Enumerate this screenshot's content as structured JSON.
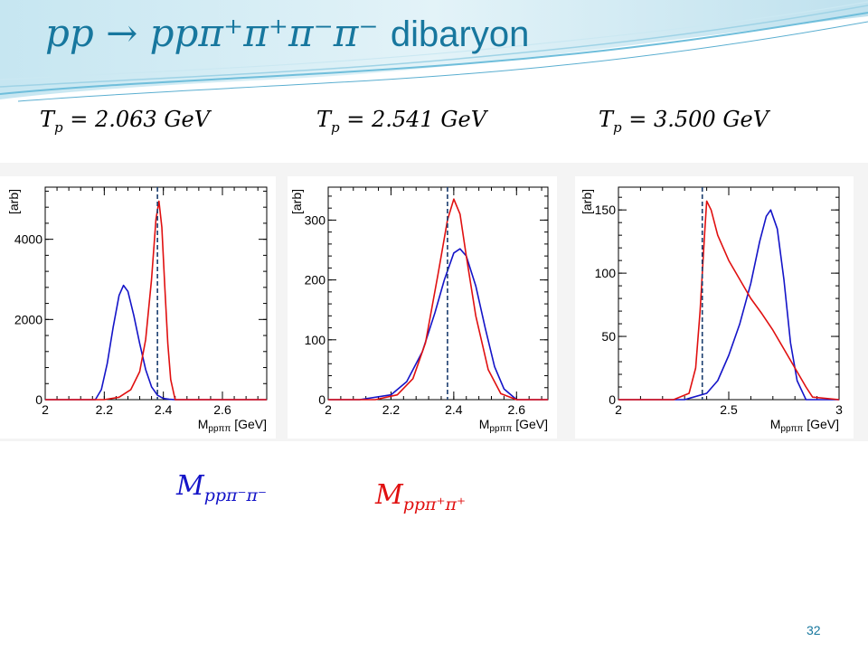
{
  "slide": {
    "title_math": "pp → ppπ⁺π⁺π⁻π⁻",
    "title_word": "dibaryon",
    "page_number": "32"
  },
  "energies": [
    {
      "var": "T",
      "sub": "p",
      "eq": " = 2.063 GeV"
    },
    {
      "var": "T",
      "sub": "p",
      "eq": " = 2.541 GeV"
    },
    {
      "var": "T",
      "sub": "p",
      "eq": " = 3.500 GeV"
    }
  ],
  "legend": {
    "minus": {
      "main": "M",
      "sub": "ppπ⁻π⁻",
      "color": "#1414c8"
    },
    "plus": {
      "main": "M",
      "sub": "ppπ⁺π⁺",
      "color": "#e01010"
    }
  },
  "colors": {
    "blue": "#1414c8",
    "red": "#e01010",
    "dashed": "#1a3d6e",
    "accent": "#17779e"
  },
  "chart_data": [
    {
      "type": "line",
      "ylabel": "[arb]",
      "xlabel_main": "M",
      "xlabel_sub": "ppππ",
      "xlabel_unit": " [GeV]",
      "xlim": [
        2.0,
        2.75
      ],
      "ylim": [
        0,
        5300
      ],
      "xticks": [
        2,
        2.2,
        2.4,
        2.6
      ],
      "xtick_labels": [
        "2",
        "2.2",
        "2.4",
        "2.6"
      ],
      "yticks": [
        0,
        2000,
        4000
      ],
      "ytick_labels": [
        "0",
        "2000",
        "4000"
      ],
      "vline": 2.38,
      "grid": false,
      "series": [
        {
          "color": "blue",
          "x": [
            2.0,
            2.17,
            2.19,
            2.21,
            2.23,
            2.25,
            2.265,
            2.28,
            2.3,
            2.32,
            2.34,
            2.36,
            2.38,
            2.4,
            2.42,
            2.44,
            2.75
          ],
          "y": [
            0,
            0,
            250,
            900,
            1800,
            2600,
            2850,
            2700,
            2100,
            1400,
            750,
            320,
            110,
            30,
            8,
            0,
            0
          ]
        },
        {
          "color": "red",
          "x": [
            2.0,
            2.2,
            2.25,
            2.29,
            2.32,
            2.34,
            2.36,
            2.375,
            2.385,
            2.395,
            2.405,
            2.415,
            2.425,
            2.44,
            2.75
          ],
          "y": [
            0,
            0,
            60,
            250,
            700,
            1500,
            3000,
            4500,
            4950,
            4300,
            2800,
            1400,
            500,
            0,
            0
          ]
        }
      ]
    },
    {
      "type": "line",
      "ylabel": "[arb]",
      "xlabel_main": "M",
      "xlabel_sub": "ppππ",
      "xlabel_unit": " [GeV]",
      "xlim": [
        2.0,
        2.7
      ],
      "ylim": [
        0,
        355
      ],
      "xticks": [
        2,
        2.2,
        2.4,
        2.6
      ],
      "xtick_labels": [
        "2",
        "2.2",
        "2.4",
        "2.6"
      ],
      "yticks": [
        0,
        100,
        200,
        300
      ],
      "ytick_labels": [
        "0",
        "100",
        "200",
        "300"
      ],
      "vline": 2.38,
      "grid": false,
      "series": [
        {
          "color": "blue",
          "x": [
            2.0,
            2.1,
            2.2,
            2.25,
            2.3,
            2.34,
            2.37,
            2.4,
            2.42,
            2.44,
            2.47,
            2.5,
            2.53,
            2.56,
            2.6,
            2.7
          ],
          "y": [
            0,
            0,
            8,
            30,
            80,
            145,
            200,
            245,
            252,
            240,
            190,
            120,
            55,
            18,
            0,
            0
          ]
        },
        {
          "color": "red",
          "x": [
            2.0,
            2.15,
            2.22,
            2.27,
            2.31,
            2.35,
            2.38,
            2.4,
            2.42,
            2.44,
            2.47,
            2.51,
            2.55,
            2.6,
            2.7
          ],
          "y": [
            0,
            0,
            8,
            35,
            95,
            210,
            300,
            335,
            310,
            240,
            140,
            50,
            10,
            0,
            0
          ]
        }
      ]
    },
    {
      "type": "line",
      "ylabel": "[arb]",
      "xlabel_main": "M",
      "xlabel_sub": "ppππ",
      "xlabel_unit": " [GeV]",
      "xlim": [
        2.0,
        3.0
      ],
      "ylim": [
        0,
        168
      ],
      "xticks": [
        2,
        2.5,
        3
      ],
      "xtick_labels": [
        "2",
        "2.5",
        "3"
      ],
      "yticks": [
        0,
        50,
        100,
        150
      ],
      "ytick_labels": [
        "0",
        "50",
        "100",
        "150"
      ],
      "vline": 2.38,
      "grid": false,
      "series": [
        {
          "color": "blue",
          "x": [
            2.0,
            2.3,
            2.4,
            2.45,
            2.5,
            2.55,
            2.6,
            2.64,
            2.67,
            2.69,
            2.72,
            2.75,
            2.78,
            2.81,
            2.85,
            3.0
          ],
          "y": [
            0,
            0,
            5,
            15,
            35,
            60,
            92,
            125,
            145,
            150,
            135,
            95,
            45,
            15,
            0,
            0
          ]
        },
        {
          "color": "red",
          "x": [
            2.0,
            2.25,
            2.32,
            2.35,
            2.37,
            2.39,
            2.4,
            2.42,
            2.45,
            2.5,
            2.55,
            2.6,
            2.65,
            2.7,
            2.75,
            2.8,
            2.85,
            2.88,
            3.0
          ],
          "y": [
            0,
            0,
            5,
            25,
            70,
            130,
            157,
            150,
            130,
            110,
            95,
            80,
            68,
            55,
            40,
            25,
            10,
            2,
            0
          ]
        }
      ]
    }
  ]
}
